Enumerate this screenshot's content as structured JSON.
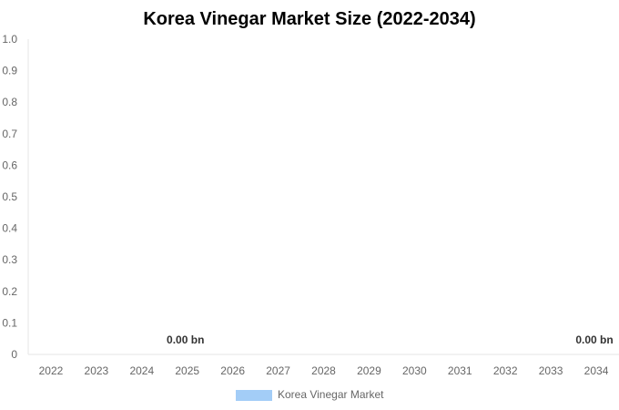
{
  "chart_data": {
    "type": "bar",
    "title": "Korea Vinegar Market Size (2022-2034)",
    "categories": [
      "2022",
      "2023",
      "2024",
      "2025",
      "2026",
      "2027",
      "2028",
      "2029",
      "2030",
      "2031",
      "2032",
      "2033",
      "2034"
    ],
    "series": [
      {
        "name": "Korea Vinegar Market",
        "values": [
          0,
          0,
          0,
          0,
          0,
          0,
          0,
          0,
          0,
          0,
          0,
          0,
          0
        ],
        "color": "#a3cdf7"
      }
    ],
    "data_labels": [
      {
        "category": "2025",
        "text": "0.00 bn"
      },
      {
        "category": "2034",
        "text": "0.00 bn"
      }
    ],
    "yticks": [
      "0",
      "0.1",
      "0.2",
      "0.3",
      "0.4",
      "0.5",
      "0.6",
      "0.7",
      "0.8",
      "0.9",
      "1.0"
    ],
    "ylim": [
      0,
      1.0
    ],
    "xlabel": "",
    "ylabel": "",
    "grid": false,
    "legend": "bottom",
    "axis_color": "#e6e6e6"
  }
}
